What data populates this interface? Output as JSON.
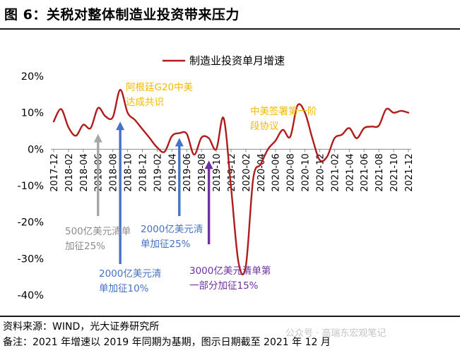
{
  "title": "图 6：关税对整体制造业投资带来压力",
  "source": "资料来源：WIND，光大证券研究所",
  "remark": "备注：2021 年增速以 2019 年同期为基期，图示日期截至 2021 年 12 月",
  "watermark": "公众号 · 高瑞东宏观笔记",
  "colors": {
    "line": "#b01c1c",
    "annotation_yellow": "#f5b800",
    "arrow_gray": "#a6a6a6",
    "arrow_blue": "#4472c4",
    "arrow_purple": "#7030a0",
    "text_gray": "#8c8c8c",
    "text_blue": "#4472c4",
    "text_purple": "#7030a0"
  },
  "chart_data": {
    "type": "line",
    "legend_position": "top-center",
    "ylim": [
      -40,
      20
    ],
    "yticks": [
      -40,
      -30,
      -20,
      -10,
      0,
      10,
      20
    ],
    "ytick_labels": [
      "-40%",
      "-30%",
      "-20%",
      "-10%",
      "0%",
      "10%",
      "20%"
    ],
    "x_tick_labels": [
      "2017-12",
      "2018-02",
      "2018-04",
      "2018-06",
      "2018-08",
      "2018-10",
      "2018-12",
      "2019-02",
      "2019-04",
      "2019-06",
      "2019-08",
      "2019-10",
      "2019-12",
      "2020-02",
      "2020-04",
      "2020-06",
      "2020-08",
      "2020-10",
      "2020-12",
      "2021-02",
      "2021-04",
      "2021-06",
      "2021-08",
      "2021-10",
      "2021-12"
    ],
    "series": [
      {
        "name": "制造业投资单月增速",
        "x": [
          "2017-12",
          "2018-01",
          "2018-02",
          "2018-03",
          "2018-04",
          "2018-05",
          "2018-06",
          "2018-07",
          "2018-08",
          "2018-09",
          "2018-10",
          "2018-11",
          "2018-12",
          "2019-01",
          "2019-02",
          "2019-03",
          "2019-04",
          "2019-05",
          "2019-06",
          "2019-07",
          "2019-08",
          "2019-09",
          "2019-10",
          "2019-11",
          "2019-12",
          "2020-01",
          "2020-02",
          "2020-03",
          "2020-04",
          "2020-05",
          "2020-06",
          "2020-07",
          "2020-08",
          "2020-09",
          "2020-10",
          "2020-11",
          "2020-12",
          "2021-01",
          "2021-02",
          "2021-03",
          "2021-04",
          "2021-05",
          "2021-06",
          "2021-07",
          "2021-08",
          "2021-09",
          "2021-10",
          "2021-11",
          "2021-12"
        ],
        "values": [
          7.6,
          11.0,
          6.0,
          3.7,
          6.7,
          5.8,
          11.3,
          9.0,
          8.8,
          16.3,
          10.0,
          8.0,
          5.5,
          3.0,
          0.5,
          -0.7,
          3.6,
          4.4,
          4.2,
          -1.5,
          3.2,
          3.0,
          0.0,
          8.5,
          -10.5,
          -31.0,
          -32.0,
          -8.0,
          -4.2,
          0.0,
          2.3,
          5.3,
          3.4,
          12.0,
          10.0,
          3.0,
          -3.0,
          -2.0,
          3.0,
          4.0,
          5.8,
          3.0,
          5.8,
          6.2,
          6.5,
          11.0,
          10.0,
          10.5,
          10.0
        ]
      }
    ],
    "annotations": [
      {
        "id": "argentina",
        "text_lines": [
          "阿根廷G20中美",
          "达成共识"
        ],
        "color": "yellow"
      },
      {
        "id": "phase-one",
        "text_lines": [
          "中美签署第一阶",
          "段协议"
        ],
        "color": "yellow"
      },
      {
        "id": "tariff-500",
        "text_lines": [
          "500亿美元清单",
          "加征25%"
        ],
        "color": "gray",
        "arrow_at": "2018-06"
      },
      {
        "id": "tariff-2000-10",
        "text_lines": [
          "2000亿美元清",
          "单加征10%"
        ],
        "color": "blue",
        "arrow_at": "2018-09"
      },
      {
        "id": "tariff-2000-25",
        "text_lines": [
          "2000亿美元清",
          "单加征25%"
        ],
        "color": "blue",
        "arrow_at": "2019-05"
      },
      {
        "id": "tariff-3000",
        "text_lines": [
          "3000亿美元清单第",
          "一部分加征15%"
        ],
        "color": "purple",
        "arrow_at": "2019-09"
      }
    ]
  }
}
